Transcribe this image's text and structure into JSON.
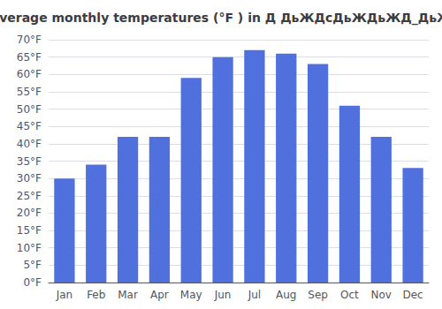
{
  "chart_data": {
    "type": "bar",
    "title": "Average monthly temperatures (°F ) in Д ДьЖДсДьЖДьЖД_ДьЖ",
    "categories": [
      "Jan",
      "Feb",
      "Mar",
      "Apr",
      "May",
      "Jun",
      "Jul",
      "Aug",
      "Sep",
      "Oct",
      "Nov",
      "Dec"
    ],
    "values": [
      30,
      34,
      42,
      42,
      59,
      65,
      67,
      66,
      63,
      51,
      42,
      33
    ],
    "ylim": [
      0,
      70
    ],
    "yticks": [
      {
        "value": 0,
        "label": "0°F"
      },
      {
        "value": 5,
        "label": "5°F"
      },
      {
        "value": 10,
        "label": "10°F"
      },
      {
        "value": 15,
        "label": "15°F"
      },
      {
        "value": 20,
        "label": "20°F"
      },
      {
        "value": 25,
        "label": "25°F"
      },
      {
        "value": 30,
        "label": "30°F"
      },
      {
        "value": 35,
        "label": "35°F"
      },
      {
        "value": 40,
        "label": "40°F"
      },
      {
        "value": 45,
        "label": "45°F"
      },
      {
        "value": 50,
        "label": "50°F"
      },
      {
        "value": 55,
        "label": "55°F"
      },
      {
        "value": 60,
        "label": "60°F"
      },
      {
        "value": 65,
        "label": "65°F"
      },
      {
        "value": 70,
        "label": "70°F"
      }
    ],
    "grid": true
  }
}
